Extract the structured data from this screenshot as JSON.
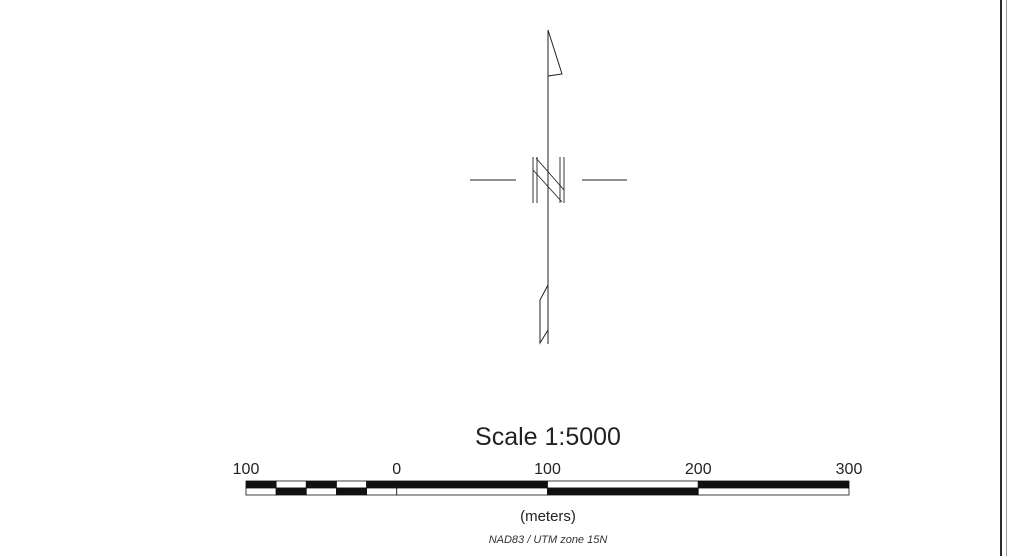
{
  "north_arrow": {
    "icon": "north-arrow-icon",
    "direction": "N"
  },
  "scale_bar": {
    "title": "Scale 1:5000",
    "units": "(meters)",
    "projection": "NAD83 / UTM zone 15N",
    "tick_labels": [
      "100",
      "0",
      "100",
      "200",
      "300"
    ],
    "min": -100,
    "max": 300,
    "fill_colors": [
      "#111111",
      "#ffffff"
    ]
  }
}
